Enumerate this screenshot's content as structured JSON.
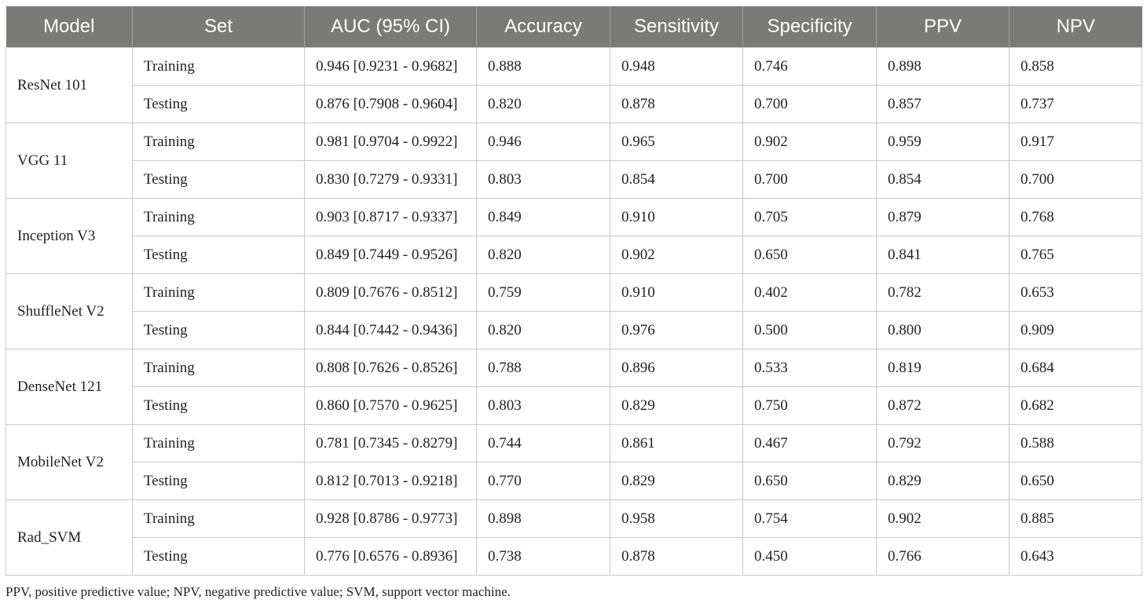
{
  "table": {
    "headers": [
      "Model",
      "Set",
      "AUC (95% CI)",
      "Accuracy",
      "Sensitivity",
      "Specificity",
      "PPV",
      "NPV"
    ],
    "groups": [
      {
        "model": "ResNet 101",
        "rows": [
          [
            "Training",
            "0.946 [0.9231 - 0.9682]",
            "0.888",
            "0.948",
            "0.746",
            "0.898",
            "0.858"
          ],
          [
            "Testing",
            "0.876 [0.7908 - 0.9604]",
            "0.820",
            "0.878",
            "0.700",
            "0.857",
            "0.737"
          ]
        ]
      },
      {
        "model": "VGG 11",
        "rows": [
          [
            "Training",
            "0.981 [0.9704 - 0.9922]",
            "0.946",
            "0.965",
            "0.902",
            "0.959",
            "0.917"
          ],
          [
            "Testing",
            "0.830 [0.7279 - 0.9331]",
            "0.803",
            "0.854",
            "0.700",
            "0.854",
            "0.700"
          ]
        ]
      },
      {
        "model": "Inception V3",
        "rows": [
          [
            "Training",
            "0.903 [0.8717 - 0.9337]",
            "0.849",
            "0.910",
            "0.705",
            "0.879",
            "0.768"
          ],
          [
            "Testing",
            "0.849 [0.7449 - 0.9526]",
            "0.820",
            "0.902",
            "0.650",
            "0.841",
            "0.765"
          ]
        ]
      },
      {
        "model": "ShuffleNet V2",
        "rows": [
          [
            "Training",
            "0.809 [0.7676 - 0.8512]",
            "0.759",
            "0.910",
            "0.402",
            "0.782",
            "0.653"
          ],
          [
            "Testing",
            "0.844 [0.7442 - 0.9436]",
            "0.820",
            "0.976",
            "0.500",
            "0.800",
            "0.909"
          ]
        ]
      },
      {
        "model": "DenseNet 121",
        "rows": [
          [
            "Training",
            "0.808 [0.7626 - 0.8526]",
            "0.788",
            "0.896",
            "0.533",
            "0.819",
            "0.684"
          ],
          [
            "Testing",
            "0.860 [0.7570 - 0.9625]",
            "0.803",
            "0.829",
            "0.750",
            "0.872",
            "0.682"
          ]
        ]
      },
      {
        "model": "MobileNet V2",
        "rows": [
          [
            "Training",
            "0.781 [0.7345 - 0.8279]",
            "0.744",
            "0.861",
            "0.467",
            "0.792",
            "0.588"
          ],
          [
            "Testing",
            "0.812 [0.7013 - 0.9218]",
            "0.770",
            "0.829",
            "0.650",
            "0.829",
            "0.650"
          ]
        ]
      },
      {
        "model": "Rad_SVM",
        "rows": [
          [
            "Training",
            "0.928 [0.8786 - 0.9773]",
            "0.898",
            "0.958",
            "0.754",
            "0.902",
            "0.885"
          ],
          [
            "Testing",
            "0.776 [0.6576 - 0.8936]",
            "0.738",
            "0.878",
            "0.450",
            "0.766",
            "0.643"
          ]
        ]
      }
    ]
  },
  "footnote": "PPV, positive predictive value; NPV, negative predictive value; SVM, support vector machine.",
  "colors": {
    "header_bg": "#7a7a78",
    "header_text": "#ffffff",
    "grid": "#c8c8c8"
  }
}
